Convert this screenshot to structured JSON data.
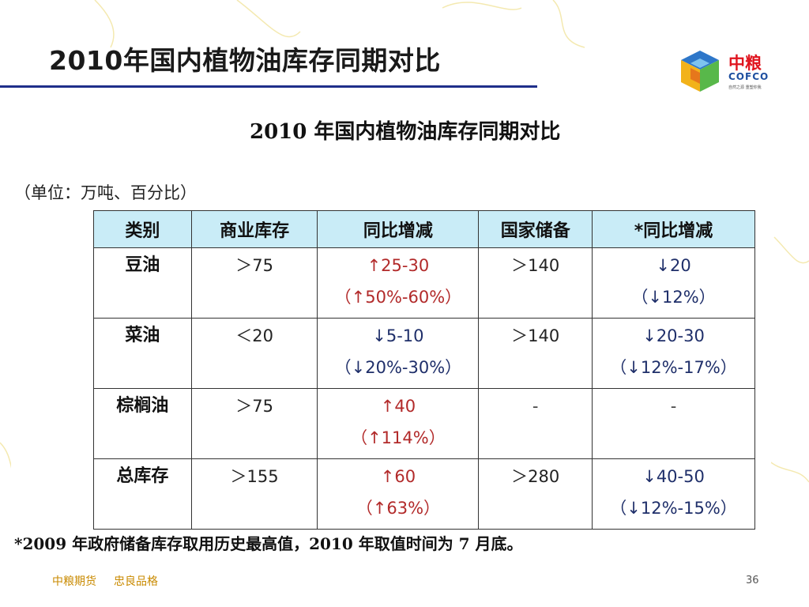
{
  "slide": {
    "title": "2010年国内植物油库存同期对比",
    "page_number": "36"
  },
  "logo": {
    "name_cn": "中粮",
    "name_en": "COFCO",
    "tagline": "自然之源 重塑你我"
  },
  "table_image": {
    "title": "2010 年国内植物油库存同期对比",
    "unit": "（单位：万吨、百分比）",
    "headers": [
      "类别",
      "商业库存",
      "同比增减",
      "国家储备",
      "*同比增减"
    ],
    "rows": [
      {
        "category": "豆油",
        "commercial": "＞75",
        "yoy_value": "↑25-30",
        "yoy_pct": "（↑50%-60%）",
        "yoy_direction": "up",
        "reserve": "＞140",
        "reserve_yoy_value": "↓20",
        "reserve_yoy_pct": "（↓12%）",
        "reserve_yoy_direction": "down"
      },
      {
        "category": "菜油",
        "commercial": "＜20",
        "yoy_value": "↓5-10",
        "yoy_pct": "（↓20%-30%）",
        "yoy_direction": "down",
        "reserve": "＞140",
        "reserve_yoy_value": "↓20-30",
        "reserve_yoy_pct": "（↓12%-17%）",
        "reserve_yoy_direction": "down"
      },
      {
        "category": "棕榈油",
        "commercial": "＞75",
        "yoy_value": "↑40",
        "yoy_pct": "（↑114%）",
        "yoy_direction": "up",
        "reserve": "-",
        "reserve_yoy_value": "-",
        "reserve_yoy_pct": "",
        "reserve_yoy_direction": "none"
      },
      {
        "category": "总库存",
        "commercial": "＞155",
        "yoy_value": "↑60",
        "yoy_pct": "（↑63%）",
        "yoy_direction": "up",
        "reserve": "＞280",
        "reserve_yoy_value": "↓40-50",
        "reserve_yoy_pct": "（↓12%-15%）",
        "reserve_yoy_direction": "down"
      }
    ],
    "footnote": "*2009 年政府储备库存取用历史最高值，2010 年取值时间为 7 月底。"
  },
  "footer": {
    "company": "中粮期货",
    "slogan": "忠良品格"
  },
  "colors": {
    "title_rule": "#1f2f8a",
    "header_fill": "#c9ecf7",
    "up_red": "#b22a2a",
    "down_blue": "#1f2f6a",
    "footer_gold": "#c98a00",
    "logo_red": "#e0141e",
    "logo_blue": "#1f4fa0"
  }
}
